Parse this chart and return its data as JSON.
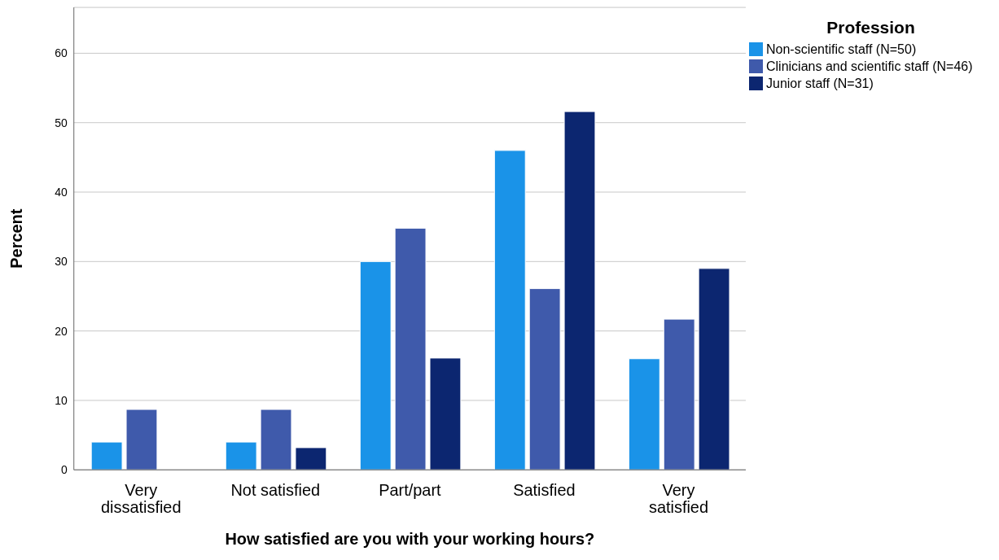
{
  "chart_data": {
    "type": "bar",
    "xlabel": "How satisfied are you with your working hours?",
    "ylabel": "Percent",
    "legend_title": "Profession",
    "categories": [
      "Very dissatisfied",
      "Not satisfied",
      "Part/part",
      "Satisfied",
      "Very satisfied"
    ],
    "series": [
      {
        "name": "Non-scientific staff (N=50)",
        "color": "#1a93e8",
        "values": [
          4,
          4,
          30,
          46,
          16
        ]
      },
      {
        "name": "Clinicians and scientific staff (N=46)",
        "color": "#3f5aab",
        "values": [
          8.7,
          8.7,
          34.8,
          26.1,
          21.7
        ]
      },
      {
        "name": "Junior staff (N=31)",
        "color": "#0c2670",
        "values": [
          0,
          3.2,
          16.1,
          51.6,
          29
        ]
      }
    ],
    "ylim": [
      0,
      66.6
    ],
    "yticks": [
      0,
      10,
      20,
      30,
      40,
      50,
      60
    ],
    "grid": "y",
    "legend": "top right"
  }
}
